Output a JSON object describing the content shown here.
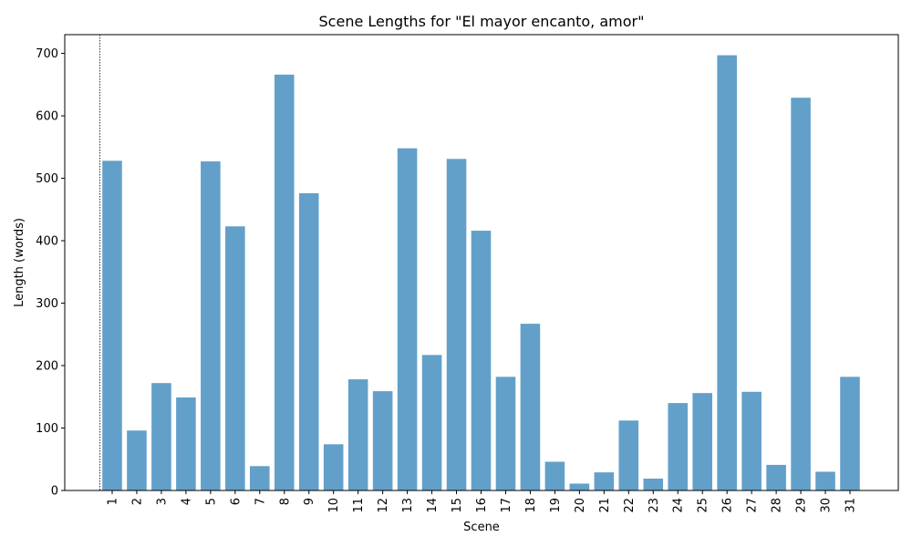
{
  "chart_data": {
    "type": "bar",
    "title": "Scene Lengths for \"El mayor encanto, amor\"",
    "xlabel": "Scene",
    "ylabel": "Length (words)",
    "ylim": [
      0,
      730
    ],
    "yticks": [
      0,
      100,
      200,
      300,
      400,
      500,
      600,
      700
    ],
    "grid": false,
    "bar_color": "#1f77b4",
    "categories": [
      "1",
      "2",
      "3",
      "4",
      "5",
      "6",
      "7",
      "8",
      "9",
      "10",
      "11",
      "12",
      "13",
      "14",
      "15",
      "16",
      "17",
      "18",
      "19",
      "20",
      "21",
      "22",
      "23",
      "24",
      "25",
      "26",
      "27",
      "28",
      "29",
      "30",
      "31"
    ],
    "values": [
      528,
      96,
      172,
      149,
      527,
      423,
      39,
      666,
      476,
      74,
      178,
      159,
      548,
      217,
      531,
      416,
      182,
      267,
      46,
      11,
      29,
      112,
      19,
      140,
      156,
      697,
      158,
      41,
      629,
      30,
      182
    ],
    "reference_line": {
      "x": "0.5",
      "style": "dotted",
      "color": "#000000"
    }
  }
}
